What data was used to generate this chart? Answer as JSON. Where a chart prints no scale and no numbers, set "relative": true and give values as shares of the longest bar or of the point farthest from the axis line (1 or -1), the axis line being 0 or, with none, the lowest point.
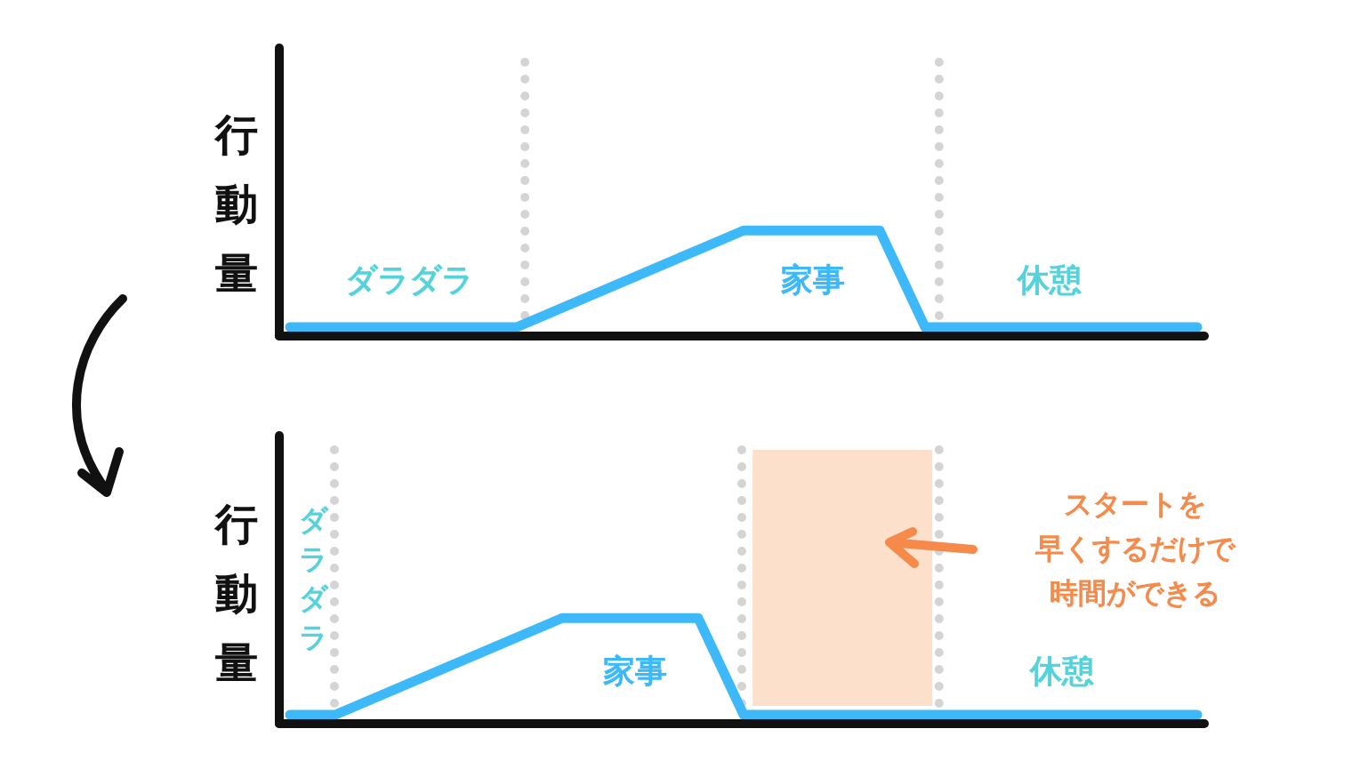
{
  "chart_data": [
    {
      "type": "line",
      "ylabel": "行動量",
      "categories": [
        null,
        null,
        null,
        null,
        null,
        null,
        null,
        null,
        null,
        null,
        null,
        null,
        null,
        null,
        null,
        null,
        null,
        null,
        null,
        null,
        null
      ],
      "values": [
        0,
        0,
        0,
        0,
        0,
        0,
        0.2,
        0.4,
        0.6,
        0.8,
        1,
        1,
        1,
        1,
        0,
        0,
        0,
        0,
        0,
        0,
        0
      ],
      "color": "#3db8f8",
      "relative": true,
      "annotations": [
        "ダラダラ",
        "家事",
        "休憩"
      ]
    },
    {
      "type": "line",
      "ylabel": "行動量",
      "categories": [
        null,
        null,
        null,
        null,
        null,
        null,
        null,
        null,
        null,
        null,
        null,
        null,
        null,
        null,
        null,
        null,
        null,
        null,
        null,
        null,
        null
      ],
      "values": [
        0,
        0,
        0.2,
        0.4,
        0.6,
        0.8,
        1,
        1,
        1,
        1,
        0,
        0,
        0,
        0,
        0,
        0,
        0,
        0,
        0,
        0,
        0
      ],
      "color": "#3db8f8",
      "relative": true,
      "annotations": [
        "ダラダラ",
        "家事",
        "休憩",
        "スタートを早くするだけで時間ができる"
      ]
    }
  ]
}
